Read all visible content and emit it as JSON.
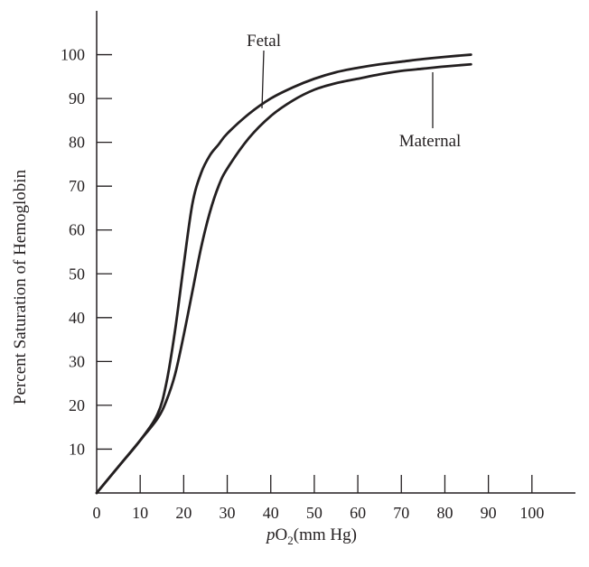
{
  "chart_data": {
    "type": "line",
    "title": "",
    "xlabel": "pO2(mm Hg)",
    "xlabel_parts": {
      "italic": "p",
      "base": "O",
      "sub": "2",
      "rest": "(mm Hg)"
    },
    "ylabel": "Percent Saturation of Hemoglobin",
    "xlim": [
      0,
      110
    ],
    "ylim": [
      0,
      110
    ],
    "x_ticks": [
      0,
      10,
      20,
      30,
      40,
      50,
      60,
      70,
      80,
      90,
      100
    ],
    "x_tick_labels": [
      "0",
      "10",
      "20",
      "30",
      "40",
      "50",
      "60",
      "70",
      "80",
      "90",
      "100"
    ],
    "y_ticks": [
      10,
      20,
      30,
      40,
      50,
      60,
      70,
      80,
      90,
      100
    ],
    "y_tick_labels": [
      "10",
      "20",
      "30",
      "40",
      "50",
      "60",
      "70",
      "80",
      "90",
      "100"
    ],
    "grid": false,
    "legend": "none",
    "series": [
      {
        "name": "Fetal",
        "x": [
          0,
          5,
          10,
          14,
          16,
          18,
          20,
          22,
          24,
          26,
          28,
          30,
          35,
          40,
          45,
          50,
          55,
          60,
          65,
          70,
          75,
          80,
          86
        ],
        "y": [
          0,
          6,
          12,
          18,
          25,
          37,
          52,
          66,
          73,
          77,
          79.5,
          82,
          86.5,
          90,
          92.5,
          94.5,
          96,
          97,
          97.8,
          98.4,
          99,
          99.5,
          100
        ]
      },
      {
        "name": "Maternal",
        "x": [
          0,
          5,
          10,
          14,
          16,
          18,
          20,
          22,
          24,
          26,
          28,
          30,
          35,
          40,
          45,
          50,
          55,
          60,
          65,
          70,
          75,
          80,
          86
        ],
        "y": [
          0,
          6,
          12,
          17,
          21,
          27,
          36,
          46,
          56,
          64,
          70,
          74,
          81,
          86,
          89.5,
          92,
          93.5,
          94.5,
          95.5,
          96.3,
          96.8,
          97.3,
          97.8
        ]
      }
    ],
    "annotations": [
      {
        "text": "Fetal",
        "series": "Fetal"
      },
      {
        "text": "Maternal",
        "series": "Maternal"
      }
    ],
    "line_color": "#231f20"
  }
}
